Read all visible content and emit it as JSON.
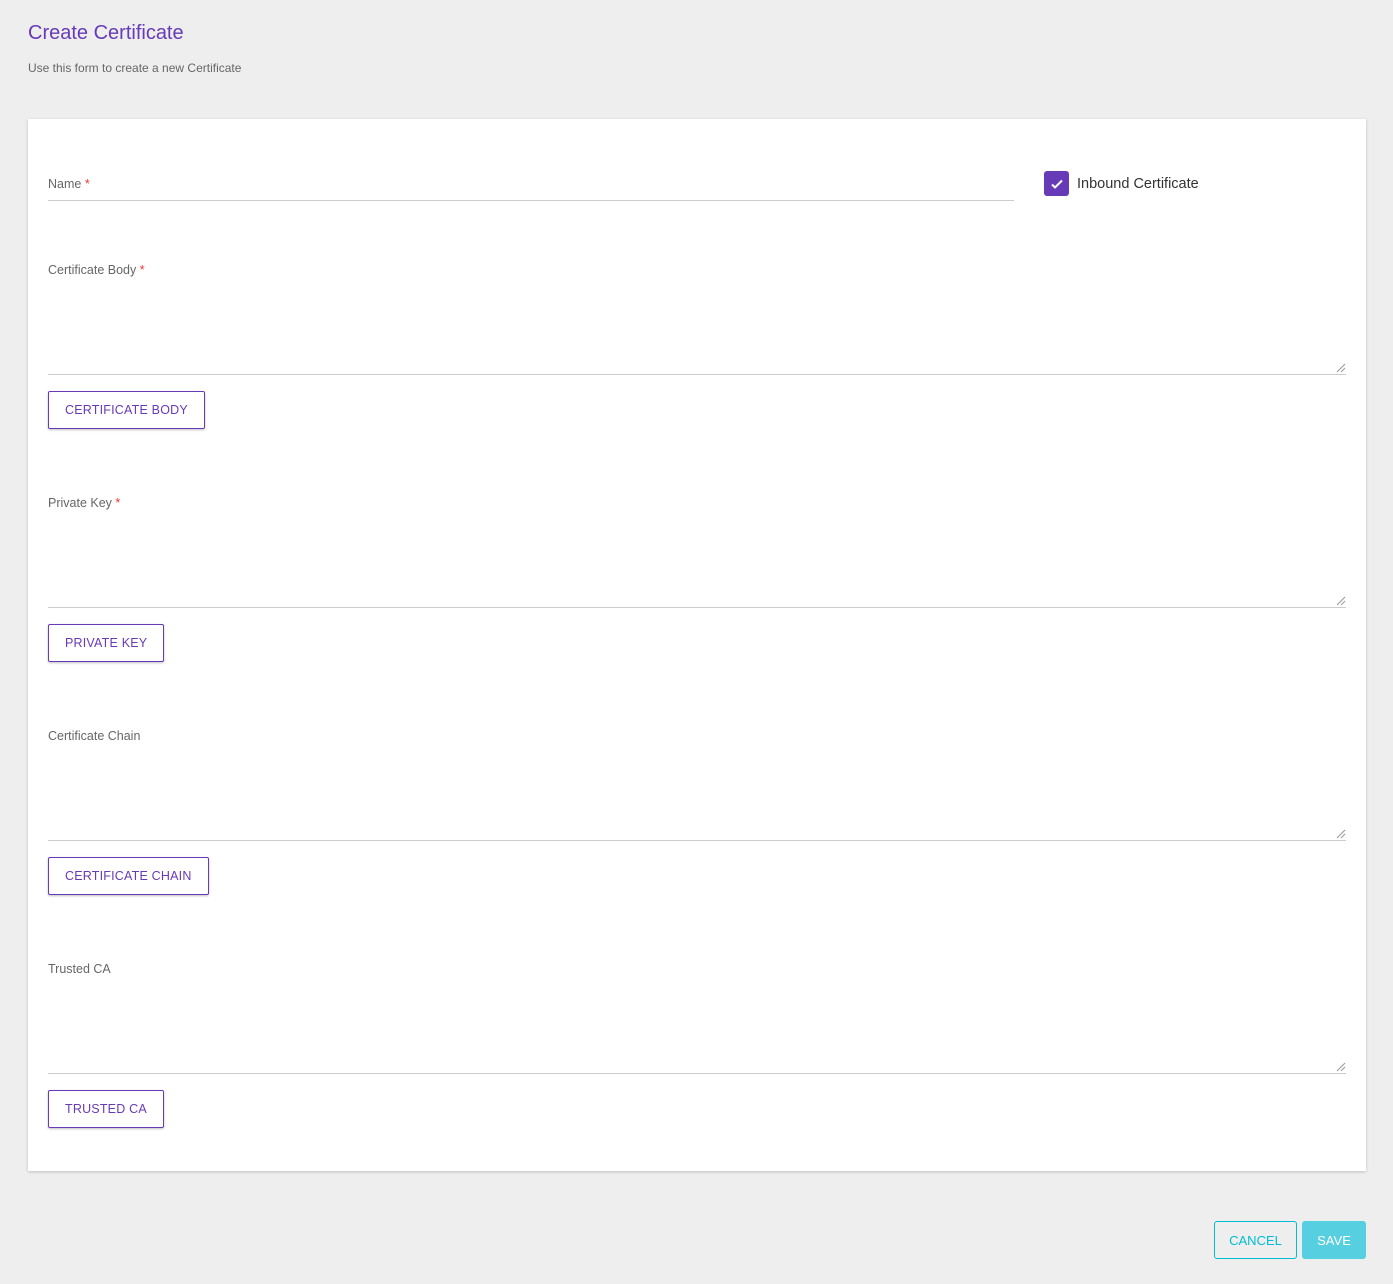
{
  "header": {
    "title": "Create Certificate",
    "subtitle": "Use this form to create a new Certificate"
  },
  "form": {
    "name_label": "Name",
    "required_mark": "*",
    "name_value": "",
    "inbound": {
      "label": "Inbound Certificate",
      "checked": true
    },
    "sections": [
      {
        "label": "Certificate Body",
        "required": true,
        "button": "CERTIFICATE BODY"
      },
      {
        "label": "Private Key",
        "required": true,
        "button": "PRIVATE KEY"
      },
      {
        "label": "Certificate Chain",
        "required": false,
        "button": "CERTIFICATE CHAIN"
      },
      {
        "label": "Trusted CA",
        "required": false,
        "button": "TRUSTED CA"
      }
    ]
  },
  "actions": {
    "cancel": "CANCEL",
    "save": "SAVE"
  },
  "colors": {
    "accent": "#673ab7",
    "action": "#00bcd4",
    "required": "#e53935"
  }
}
